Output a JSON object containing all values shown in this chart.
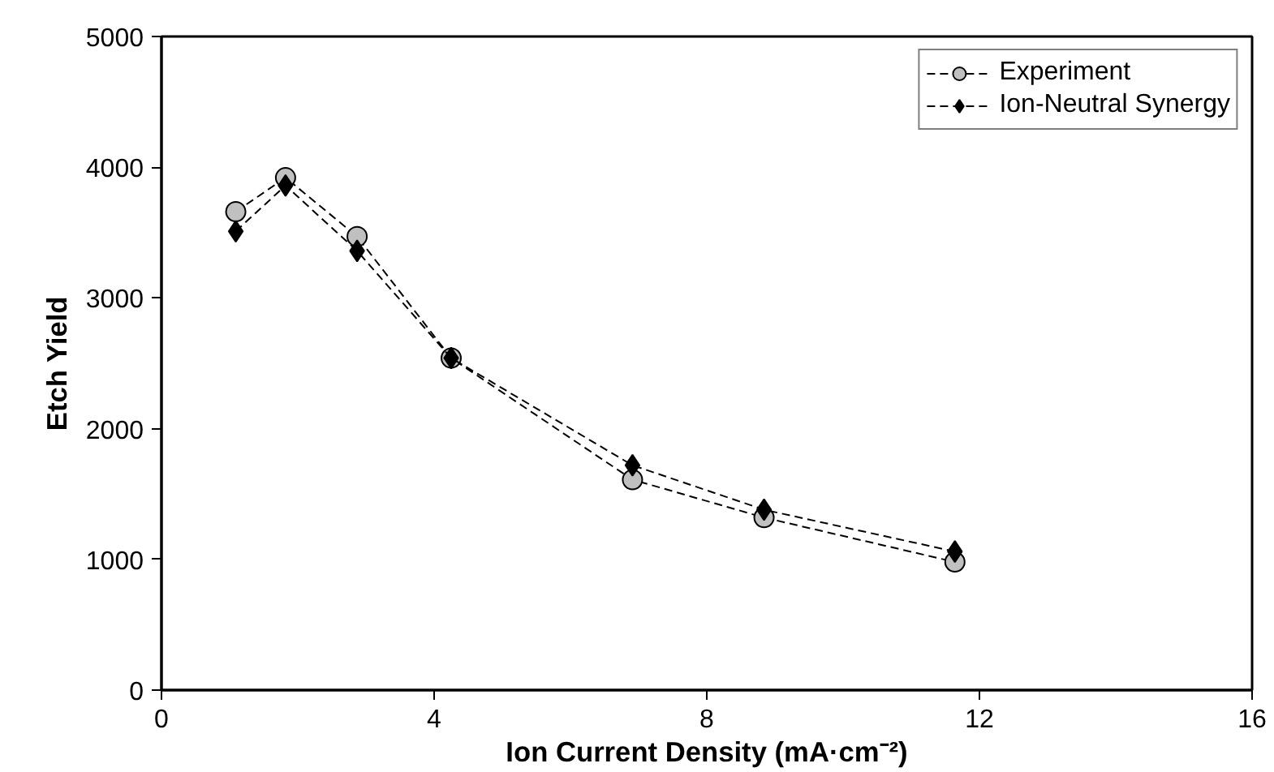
{
  "chart_data": {
    "type": "line",
    "xlabel": "Ion Current Density (mA·cm⁻²)",
    "ylabel": "Etch Yield",
    "xlim": [
      0,
      16
    ],
    "xticks": [
      0,
      4,
      8,
      12,
      16
    ],
    "ylim": [
      0,
      5000
    ],
    "yticks": [
      0,
      1000,
      2000,
      3000,
      4000,
      5000
    ],
    "grid": false,
    "legend": "top right",
    "line_style": "dashed",
    "x": [
      1.09,
      1.82,
      2.87,
      4.25,
      6.91,
      8.84,
      11.64
    ],
    "series": [
      {
        "name": "Experiment",
        "color": "#c0c0c0",
        "marker": "circle",
        "values": [
          3660,
          3920,
          3470,
          2540,
          1610,
          1320,
          980
        ]
      },
      {
        "name": "Ion-Neutral Synergy",
        "color": "#000000",
        "marker": "diamond",
        "values": [
          3510,
          3860,
          3360,
          2540,
          1720,
          1380,
          1060
        ]
      }
    ]
  }
}
